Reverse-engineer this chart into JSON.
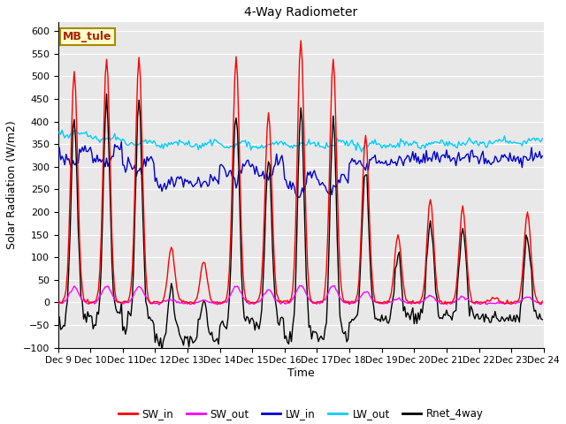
{
  "title": "4-Way Radiometer",
  "xlabel": "Time",
  "ylabel": "Solar Radiation (W/m2)",
  "ylim": [
    -100,
    620
  ],
  "yticks": [
    -100,
    -50,
    0,
    50,
    100,
    150,
    200,
    250,
    300,
    350,
    400,
    450,
    500,
    550,
    600
  ],
  "xlim": [
    0,
    360
  ],
  "xtick_labels": [
    "Dec 9",
    "Dec 10",
    "Dec 11",
    "Dec 12",
    "Dec 13",
    "Dec 14",
    "Dec 15",
    "Dec 16",
    "Dec 17",
    "Dec 18",
    "Dec 19",
    "Dec 20",
    "Dec 21",
    "Dec 22",
    "Dec 23",
    "Dec 24"
  ],
  "xtick_positions": [
    0,
    24,
    48,
    72,
    96,
    120,
    144,
    168,
    192,
    216,
    240,
    264,
    288,
    312,
    336,
    360
  ],
  "annotation_text": "MB_tule",
  "annotation_color": "#aa2200",
  "annotation_bg": "#ffffcc",
  "annotation_border": "#aa8800",
  "colors": {
    "SW_in": "#ff0000",
    "SW_out": "#ff00ff",
    "LW_in": "#0000cc",
    "LW_out": "#00ccff",
    "Rnet_4way": "#000000"
  },
  "bg_color": "#e8e8e8",
  "grid_color": "#ffffff",
  "legend_entries": [
    "SW_in",
    "SW_out",
    "LW_in",
    "LW_out",
    "Rnet_4way"
  ]
}
